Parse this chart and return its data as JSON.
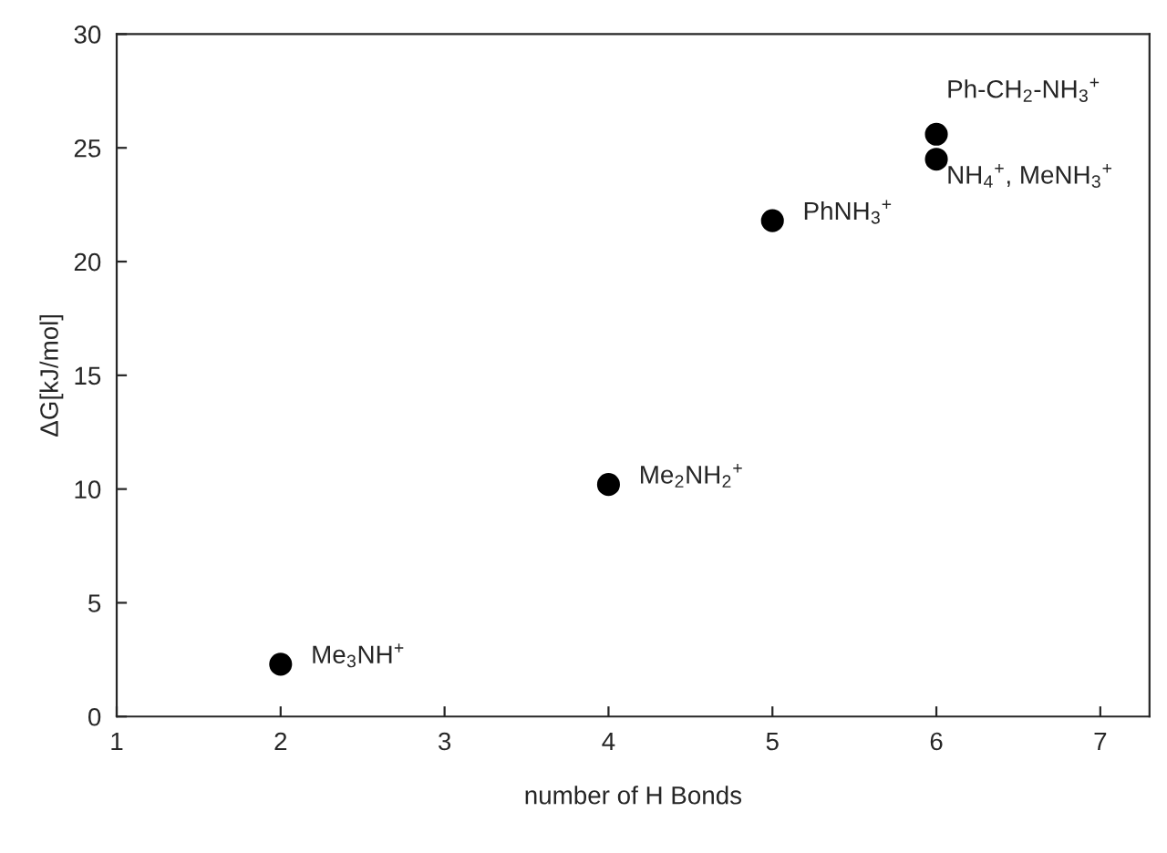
{
  "chart_data": {
    "type": "scatter",
    "xlabel": "number of H Bonds",
    "ylabel": "ΔG[kJ/mol]",
    "x": [
      2,
      4,
      5,
      6,
      6
    ],
    "series": [
      {
        "color": "#000000",
        "values": [
          2.3,
          10.2,
          21.8,
          25.6,
          24.5
        ]
      }
    ],
    "xlim": [
      1,
      7.3
    ],
    "xticks": [
      1,
      2,
      3,
      4,
      5,
      6,
      7
    ],
    "ylim": [
      0,
      30
    ],
    "yticks": [
      0,
      5,
      10,
      15,
      20,
      25,
      30
    ],
    "marker": "circle",
    "grid": false,
    "legend": false,
    "annotations": [
      {
        "text": "Me$_{3}$NH$^{+}$",
        "x": 2,
        "y": 2.3
      },
      {
        "text": "Me$_{2}$NH$_{2}$$^{+}$",
        "x": 4,
        "y": 10.2
      },
      {
        "text": "PhNH$_{3}$$^{+}$",
        "x": 5,
        "y": 21.8
      },
      {
        "text": "Ph-CH$_{2}$-NH$_{3}$$^{+}$",
        "x": 6,
        "y": 25.6
      },
      {
        "text": "NH$_{4}$$^{+}$, MeNH$_{3}$$^{+}$",
        "x": 6,
        "y": 24.5
      }
    ]
  }
}
